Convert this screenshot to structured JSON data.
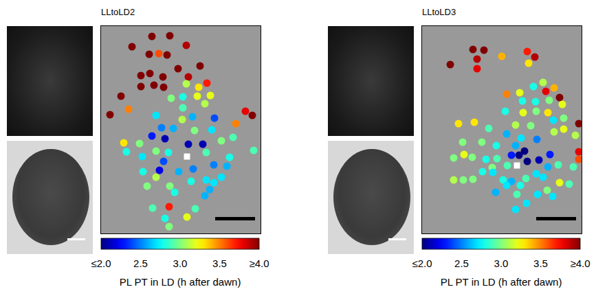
{
  "chart_data": [
    {
      "type": "scatter",
      "title": "LLtoLD2",
      "tick_labels": false,
      "xlim": [
        0,
        232
      ],
      "ylim": [
        0,
        302
      ],
      "x": [
        74,
        100,
        45,
        124,
        84,
        70,
        96,
        58,
        71,
        58,
        77,
        90,
        112,
        144,
        127,
        154,
        124,
        142,
        29,
        91,
        102,
        119,
        140,
        159,
        40,
        119,
        151,
        210,
        220,
        13,
        80,
        133,
        165,
        118,
        88,
        105,
        74,
        93,
        127,
        148,
        136,
        161,
        196,
        33,
        56,
        37,
        60,
        80,
        98,
        153,
        175,
        192,
        222,
        85,
        91,
        113,
        61,
        134,
        164,
        183,
        187,
        175,
        153,
        164,
        158,
        131,
        67,
        80,
        100,
        107,
        151,
        93,
        99,
        75,
        99,
        125,
        137
      ],
      "y": [
        287,
        288,
        272,
        274,
        262,
        261,
        260,
        230,
        233,
        214,
        216,
        228,
        240,
        244,
        228,
        219,
        218,
        213,
        200,
        213,
        197,
        199,
        200,
        201,
        181,
        183,
        189,
        178,
        172,
        173,
        172,
        170,
        168,
        166,
        154,
        153,
        142,
        138,
        130,
        130,
        150,
        151,
        160,
        132,
        131,
        119,
        112,
        120,
        118,
        118,
        135,
        140,
        121,
        92,
        105,
        90,
        90,
        94,
        100,
        98,
        111,
        82,
        78,
        74,
        64,
        76,
        69,
        82,
        69,
        60,
        55,
        22,
        10,
        37,
        39,
        24,
        36
      ],
      "values": [
        4.0,
        4.0,
        4.0,
        3.9,
        3.6,
        4.0,
        4.0,
        4.0,
        4.0,
        4.0,
        4.0,
        4.0,
        4.0,
        4.0,
        3.9,
        3.7,
        3.1,
        3.3,
        4.0,
        4.0,
        3.0,
        2.8,
        3.2,
        3.2,
        3.5,
        2.9,
        3.1,
        3.8,
        4.0,
        4.0,
        2.7,
        2.6,
        2.4,
        3.1,
        2.5,
        2.6,
        2.3,
        2.1,
        2.1,
        2.1,
        3.0,
        2.7,
        3.5,
        3.3,
        3.0,
        2.8,
        2.7,
        3.0,
        2.8,
        2.9,
        3.0,
        2.9,
        2.9,
        2.2,
        2.4,
        2.6,
        2.8,
        2.5,
        2.5,
        2.6,
        2.8,
        2.7,
        2.7,
        2.7,
        2.6,
        2.8,
        3.0,
        3.1,
        3.0,
        2.8,
        2.6,
        2.8,
        3.0,
        2.9,
        3.7,
        3.2,
        2.9
      ],
      "reference_point": {
        "x": 125,
        "y": 112,
        "marker": "square",
        "color": "#ffffff"
      },
      "colorbar": {
        "range": [
          2.0,
          4.0
        ],
        "ticks": [
          {
            "value": 2.0,
            "label": "≤2.0"
          },
          2.5,
          {
            "value": 3.0,
            "label": "3.0"
          },
          3.5,
          {
            "value": 4.0,
            "label": "≥4.0"
          }
        ],
        "label": "PL PT in LD (h after dawn)"
      }
    },
    {
      "type": "scatter",
      "title": "LLtoLD3",
      "tick_labels": false,
      "xlim": [
        0,
        232
      ],
      "ylim": [
        0,
        302
      ],
      "x": [
        41,
        74,
        90,
        80,
        80,
        116,
        153,
        164,
        155,
        123,
        162,
        176,
        180,
        192,
        142,
        200,
        146,
        165,
        185,
        204,
        183,
        147,
        121,
        166,
        228,
        191,
        206,
        136,
        158,
        192,
        206,
        223,
        53,
        76,
        97,
        123,
        144,
        167,
        136,
        59,
        87,
        108,
        130,
        141,
        149,
        153,
        170,
        186,
        183,
        198,
        220,
        228,
        228,
        46,
        61,
        73,
        93,
        109,
        102,
        124,
        46,
        60,
        74,
        88,
        103,
        118,
        130,
        107,
        123,
        151,
        166,
        143,
        176,
        200,
        214,
        138,
        152,
        168,
        190,
        182,
        136
      ],
      "y": [
        246,
        268,
        267,
        254,
        240,
        258,
        265,
        257,
        248,
        203,
        214,
        220,
        207,
        212,
        205,
        198,
        193,
        192,
        194,
        188,
        176,
        176,
        178,
        178,
        160,
        165,
        168,
        158,
        157,
        148,
        152,
        143,
        160,
        162,
        153,
        145,
        139,
        137,
        128,
        133,
        133,
        128,
        114,
        114,
        120,
        105,
        107,
        115,
        97,
        100,
        97,
        119,
        108,
        110,
        115,
        111,
        108,
        109,
        96,
        99,
        78,
        78,
        79,
        90,
        89,
        78,
        76,
        60,
        70,
        80,
        87,
        70,
        82,
        74,
        72,
        57,
        44,
        57,
        54,
        63,
        35
      ],
      "values": [
        4.0,
        4.0,
        4.0,
        3.9,
        3.8,
        3.4,
        3.7,
        3.9,
        3.3,
        3.5,
        2.8,
        3.1,
        3.8,
        3.4,
        3.2,
        4.0,
        2.8,
        2.8,
        3.0,
        3.2,
        3.3,
        3.2,
        2.8,
        3.0,
        4.0,
        2.7,
        3.0,
        3.1,
        3.0,
        3.1,
        3.2,
        3.1,
        3.3,
        3.3,
        2.9,
        2.6,
        2.7,
        2.5,
        2.6,
        3.0,
        3.0,
        2.8,
        2.3,
        2.0,
        2.0,
        2.0,
        2.1,
        2.3,
        2.6,
        2.9,
        2.9,
        3.8,
        3.6,
        3.0,
        3.2,
        3.0,
        2.8,
        2.9,
        3.0,
        2.9,
        3.1,
        3.0,
        3.0,
        2.8,
        2.7,
        2.8,
        2.6,
        2.6,
        2.7,
        2.9,
        2.7,
        2.8,
        2.7,
        3.2,
        2.9,
        2.9,
        2.7,
        2.7,
        2.7,
        3.0,
        2.7
      ],
      "reference_point": {
        "x": 138,
        "y": 99,
        "marker": "square",
        "color": "#ffffff"
      },
      "colorbar": {
        "range": [
          2.0,
          4.0
        ],
        "ticks": [
          {
            "value": 2.0,
            "label": "≤2.0"
          },
          2.5,
          {
            "value": 3.0,
            "label": "3.0"
          },
          3.5,
          {
            "value": 4.0,
            "label": "≥4.0"
          }
        ],
        "label": "PL PT in LD (h after dawn)"
      }
    }
  ]
}
